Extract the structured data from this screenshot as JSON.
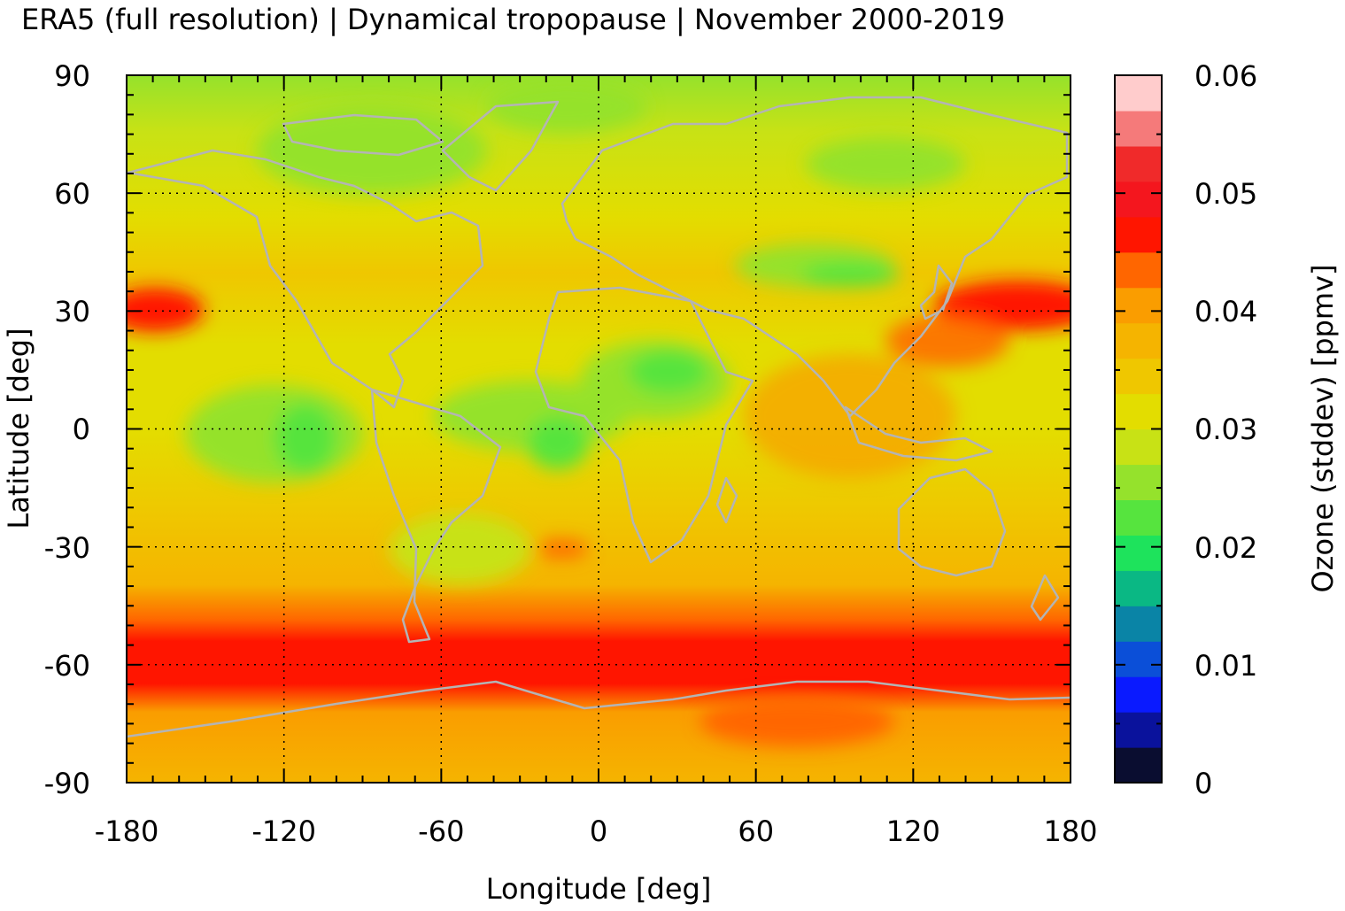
{
  "title": "ERA5 (full resolution) | Dynamical tropopause | November 2000-2019",
  "x_axis": {
    "label": "Longitude [deg]",
    "range": [
      -180,
      180
    ],
    "ticks": [
      "-180",
      "-120",
      "-60",
      "0",
      "60",
      "120",
      "180"
    ]
  },
  "y_axis": {
    "label": "Latitude [deg]",
    "range": [
      -90,
      90
    ],
    "ticks": [
      "90",
      "60",
      "30",
      "0",
      "-30",
      "-60",
      "-90"
    ]
  },
  "colorbar": {
    "label": "Ozone (stddev) [ppmv]",
    "range": [
      0,
      0.06
    ],
    "ticks": [
      "0.06",
      "0.05",
      "0.04",
      "0.03",
      "0.02",
      "0.01",
      "0"
    ],
    "levels": [
      {
        "from": 0.0,
        "to": 0.003,
        "color": "#0a0d30"
      },
      {
        "from": 0.003,
        "to": 0.006,
        "color": "#0a129c"
      },
      {
        "from": 0.006,
        "to": 0.009,
        "color": "#0a1aff"
      },
      {
        "from": 0.009,
        "to": 0.012,
        "color": "#0b4fd8"
      },
      {
        "from": 0.012,
        "to": 0.015,
        "color": "#0a84a6"
      },
      {
        "from": 0.015,
        "to": 0.018,
        "color": "#0ab884"
      },
      {
        "from": 0.018,
        "to": 0.021,
        "color": "#1ee35c"
      },
      {
        "from": 0.021,
        "to": 0.024,
        "color": "#56e43e"
      },
      {
        "from": 0.024,
        "to": 0.027,
        "color": "#95e22c"
      },
      {
        "from": 0.027,
        "to": 0.03,
        "color": "#c8e215"
      },
      {
        "from": 0.03,
        "to": 0.033,
        "color": "#e3dd00"
      },
      {
        "from": 0.033,
        "to": 0.036,
        "color": "#efc700"
      },
      {
        "from": 0.036,
        "to": 0.039,
        "color": "#f5b400"
      },
      {
        "from": 0.039,
        "to": 0.042,
        "color": "#fa9d00"
      },
      {
        "from": 0.042,
        "to": 0.045,
        "color": "#ff6600"
      },
      {
        "from": 0.045,
        "to": 0.048,
        "color": "#ff1500"
      },
      {
        "from": 0.048,
        "to": 0.051,
        "color": "#f4161e"
      },
      {
        "from": 0.051,
        "to": 0.054,
        "color": "#f02a2a"
      },
      {
        "from": 0.054,
        "to": 0.057,
        "color": "#f57a7a"
      },
      {
        "from": 0.057,
        "to": 0.06,
        "color": "#ffcccc"
      }
    ]
  },
  "map_colors": {
    "background": "#e3d300",
    "coastline": "#b4b4b4"
  }
}
